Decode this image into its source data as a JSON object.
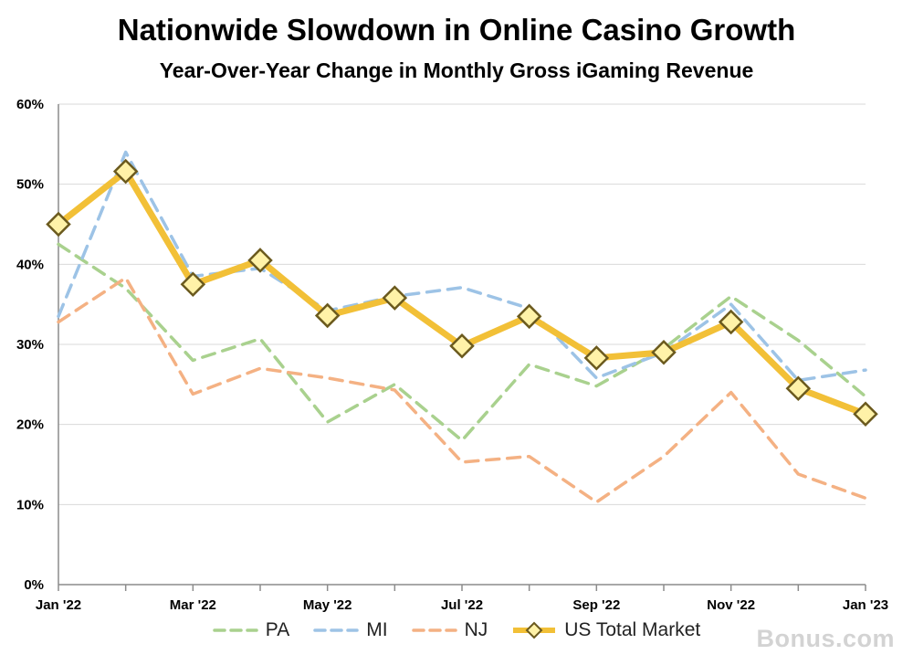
{
  "chart_data": {
    "type": "line",
    "title": "Nationwide Slowdown in Online Casino Growth",
    "subtitle": "Year-Over-Year Change in Monthly Gross iGaming Revenue",
    "x": [
      "Jan '22",
      "Feb '22",
      "Mar '22",
      "Apr '22",
      "May '22",
      "Jun '22",
      "Jul '22",
      "Aug '22",
      "Sep '22",
      "Oct '22",
      "Nov '22",
      "Dec '22",
      "Jan '23"
    ],
    "x_tick_labels": [
      "Jan '22",
      "Mar '22",
      "May '22",
      "Jul '22",
      "Sep '22",
      "Nov '22",
      "Jan '23"
    ],
    "y_tick_labels": [
      "0%",
      "10%",
      "20%",
      "30%",
      "40%",
      "50%",
      "60%"
    ],
    "ylim": [
      0,
      60
    ],
    "grid": "horizontal",
    "legend_position": "bottom",
    "series": [
      {
        "name": "PA",
        "style": "dashed",
        "color": "#a9d18e",
        "values": [
          42.5,
          37,
          28,
          30.7,
          20.3,
          25,
          18,
          27.5,
          24.8,
          29.5,
          36,
          30.5,
          23.5
        ]
      },
      {
        "name": "MI",
        "style": "dashed",
        "color": "#9dc3e6",
        "values": [
          33.5,
          54,
          38.5,
          39.5,
          34.2,
          36,
          37.1,
          34.5,
          25.8,
          29,
          35,
          25.5,
          26.8
        ]
      },
      {
        "name": "NJ",
        "style": "dashed",
        "color": "#f4b183",
        "values": [
          32.8,
          38.3,
          23.8,
          27,
          25.8,
          24.3,
          15.3,
          16,
          10.3,
          16,
          24,
          13.8,
          10.8
        ]
      },
      {
        "name": "US Total Market",
        "style": "solid-diamond",
        "color": "#f2c037",
        "marker_fill": "#fff2a8",
        "marker_stroke": "#6b5a1e",
        "values": [
          45,
          51.6,
          37.5,
          40.5,
          33.6,
          35.8,
          29.8,
          33.5,
          28.3,
          29,
          32.8,
          24.5,
          21.3
        ]
      }
    ]
  },
  "watermark": "Bonus.com"
}
